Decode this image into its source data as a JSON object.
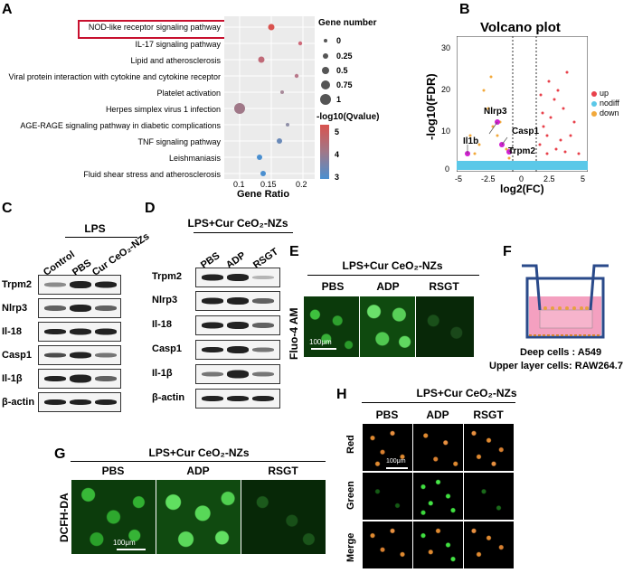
{
  "panelA": {
    "label": "A",
    "pathways": [
      "NOD-like receptor signaling pathway",
      "IL-17 signaling pathway",
      "Lipid and atherosclerosis",
      "Viral protein interaction with cytokine and cytokine receptor",
      "Platelet activation",
      "Herpes simplex virus 1 infection",
      "AGE-RAGE signaling pathway in diabetic complications",
      "TNF signaling pathway",
      "Leishmaniasis",
      "Fluid shear stress and atherosclerosis"
    ],
    "xlabel": "Gene Ratio",
    "xticks": [
      "0.1",
      "0.15",
      "0.2"
    ],
    "legend_size_title": "Gene number",
    "legend_size_labels": [
      "0",
      "0.25",
      "0.5",
      "0.75",
      "1"
    ],
    "legend_color_title": "-log10(Qvalue)",
    "legend_color_ticks": [
      "5",
      "4",
      "3"
    ]
  },
  "panelB": {
    "label": "B",
    "title": "Volcano plot",
    "ylabel": "-log10(FDR)",
    "xlabel": "log2(FC)",
    "yticks": [
      "30",
      "20",
      "10",
      "0"
    ],
    "xticks": [
      "-5",
      "-2.5",
      "0",
      "2.5",
      "5"
    ],
    "legend": [
      "up",
      "nodiff",
      "down"
    ],
    "genes": [
      "Nlrp3",
      "Casp1",
      "Il1b",
      "Trpm2"
    ]
  },
  "panelC": {
    "label": "C",
    "group_header": "LPS",
    "columns": [
      "Control",
      "PBS",
      "Cur CeO₂-NZs"
    ],
    "rows": [
      "Trpm2",
      "Nlrp3",
      "Il-18",
      "Casp1",
      "Il-1β",
      "β-actin"
    ]
  },
  "panelD": {
    "label": "D",
    "header": "LPS+Cur CeO₂-NZs",
    "columns": [
      "PBS",
      "ADP",
      "RSGT"
    ],
    "rows": [
      "Trpm2",
      "Nlrp3",
      "Il-18",
      "Casp1",
      "Il-1β",
      "β-actin"
    ]
  },
  "panelE": {
    "label": "E",
    "header": "LPS+Cur CeO₂-NZs",
    "columns": [
      "PBS",
      "ADP",
      "RSGT"
    ],
    "rowlabel": "Fluo-4 AM",
    "scalebar": "100μm"
  },
  "panelF": {
    "label": "F",
    "caption1": "Deep cells : A549",
    "caption2": "Upper layer cells:  RAW264.7"
  },
  "panelG": {
    "label": "G",
    "header": "LPS+Cur CeO₂-NZs",
    "columns": [
      "PBS",
      "ADP",
      "RSGT"
    ],
    "rowlabel": "DCFH-DA",
    "scalebar": "100μm"
  },
  "panelH": {
    "label": "H",
    "header": "LPS+Cur CeO₂-NZs",
    "columns": [
      "PBS",
      "ADP",
      "RSGT"
    ],
    "rows": [
      "Red",
      "Green",
      "Merge"
    ],
    "scalebar": "100μm"
  },
  "colors": {
    "up": "#e8414b",
    "nodiff": "#5bc8e8",
    "down": "#f2a93b",
    "scale_high": "#d9534f",
    "scale_low": "#4a8fd0",
    "fluor_green": "#35c035",
    "fluor_orange": "#e08a30"
  }
}
